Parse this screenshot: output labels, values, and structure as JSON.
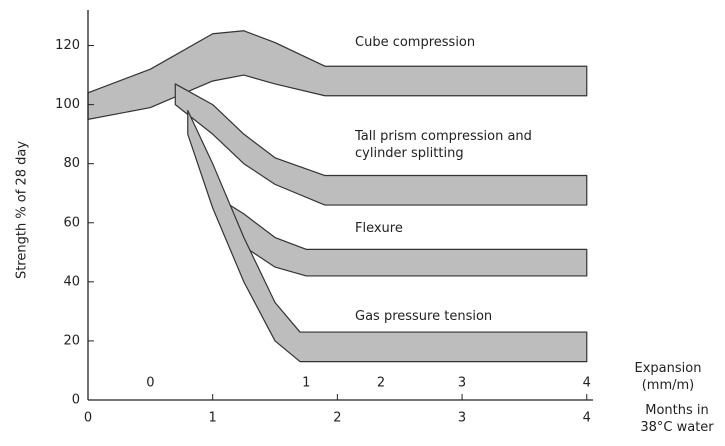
{
  "chart_data": {
    "type": "band",
    "ylabel": "Strength % of 28 day",
    "xlabel": "Months in 38°C water",
    "x2label": "Expansion (mm/m)",
    "xlim": [
      0,
      4.05
    ],
    "ylim": [
      0,
      130
    ],
    "xticks": [
      0,
      1,
      2,
      3,
      4
    ],
    "yticks": [
      0,
      20,
      40,
      60,
      80,
      100,
      120
    ],
    "x2ticks": [
      {
        "value": 0.5,
        "label": "0"
      },
      {
        "value": 1.75,
        "label": "1"
      },
      {
        "value": 2.35,
        "label": "2"
      },
      {
        "value": 3.0,
        "label": "3"
      },
      {
        "value": 4.0,
        "label": "4"
      }
    ],
    "color": "#bdbdbd",
    "series": [
      {
        "name": "Cube compression",
        "x": [
          0,
          0.5,
          1,
          1.25,
          1.5,
          1.9,
          4
        ],
        "upper": [
          104,
          112,
          124,
          125,
          121,
          113,
          113
        ],
        "lower": [
          95,
          99,
          108,
          110,
          107,
          103,
          103
        ]
      },
      {
        "name": "Tall prism compression and cylinder splitting",
        "x": [
          0.7,
          1,
          1.25,
          1.5,
          1.9,
          4
        ],
        "upper": [
          107,
          100,
          90,
          82,
          76,
          76
        ],
        "lower": [
          100,
          90,
          80,
          73,
          66,
          66
        ]
      },
      {
        "name": "Flexure",
        "x": [
          1.1,
          1.25,
          1.5,
          1.75,
          4
        ],
        "upper": [
          67,
          63,
          55,
          51,
          51
        ],
        "lower": [
          60,
          52,
          45,
          42,
          42
        ]
      },
      {
        "name": "Gas pressure tension",
        "x": [
          0.8,
          1,
          1.25,
          1.5,
          1.7,
          4
        ],
        "upper": [
          98,
          80,
          55,
          33,
          23,
          23
        ],
        "lower": [
          90,
          65,
          40,
          20,
          13,
          13
        ]
      }
    ]
  }
}
